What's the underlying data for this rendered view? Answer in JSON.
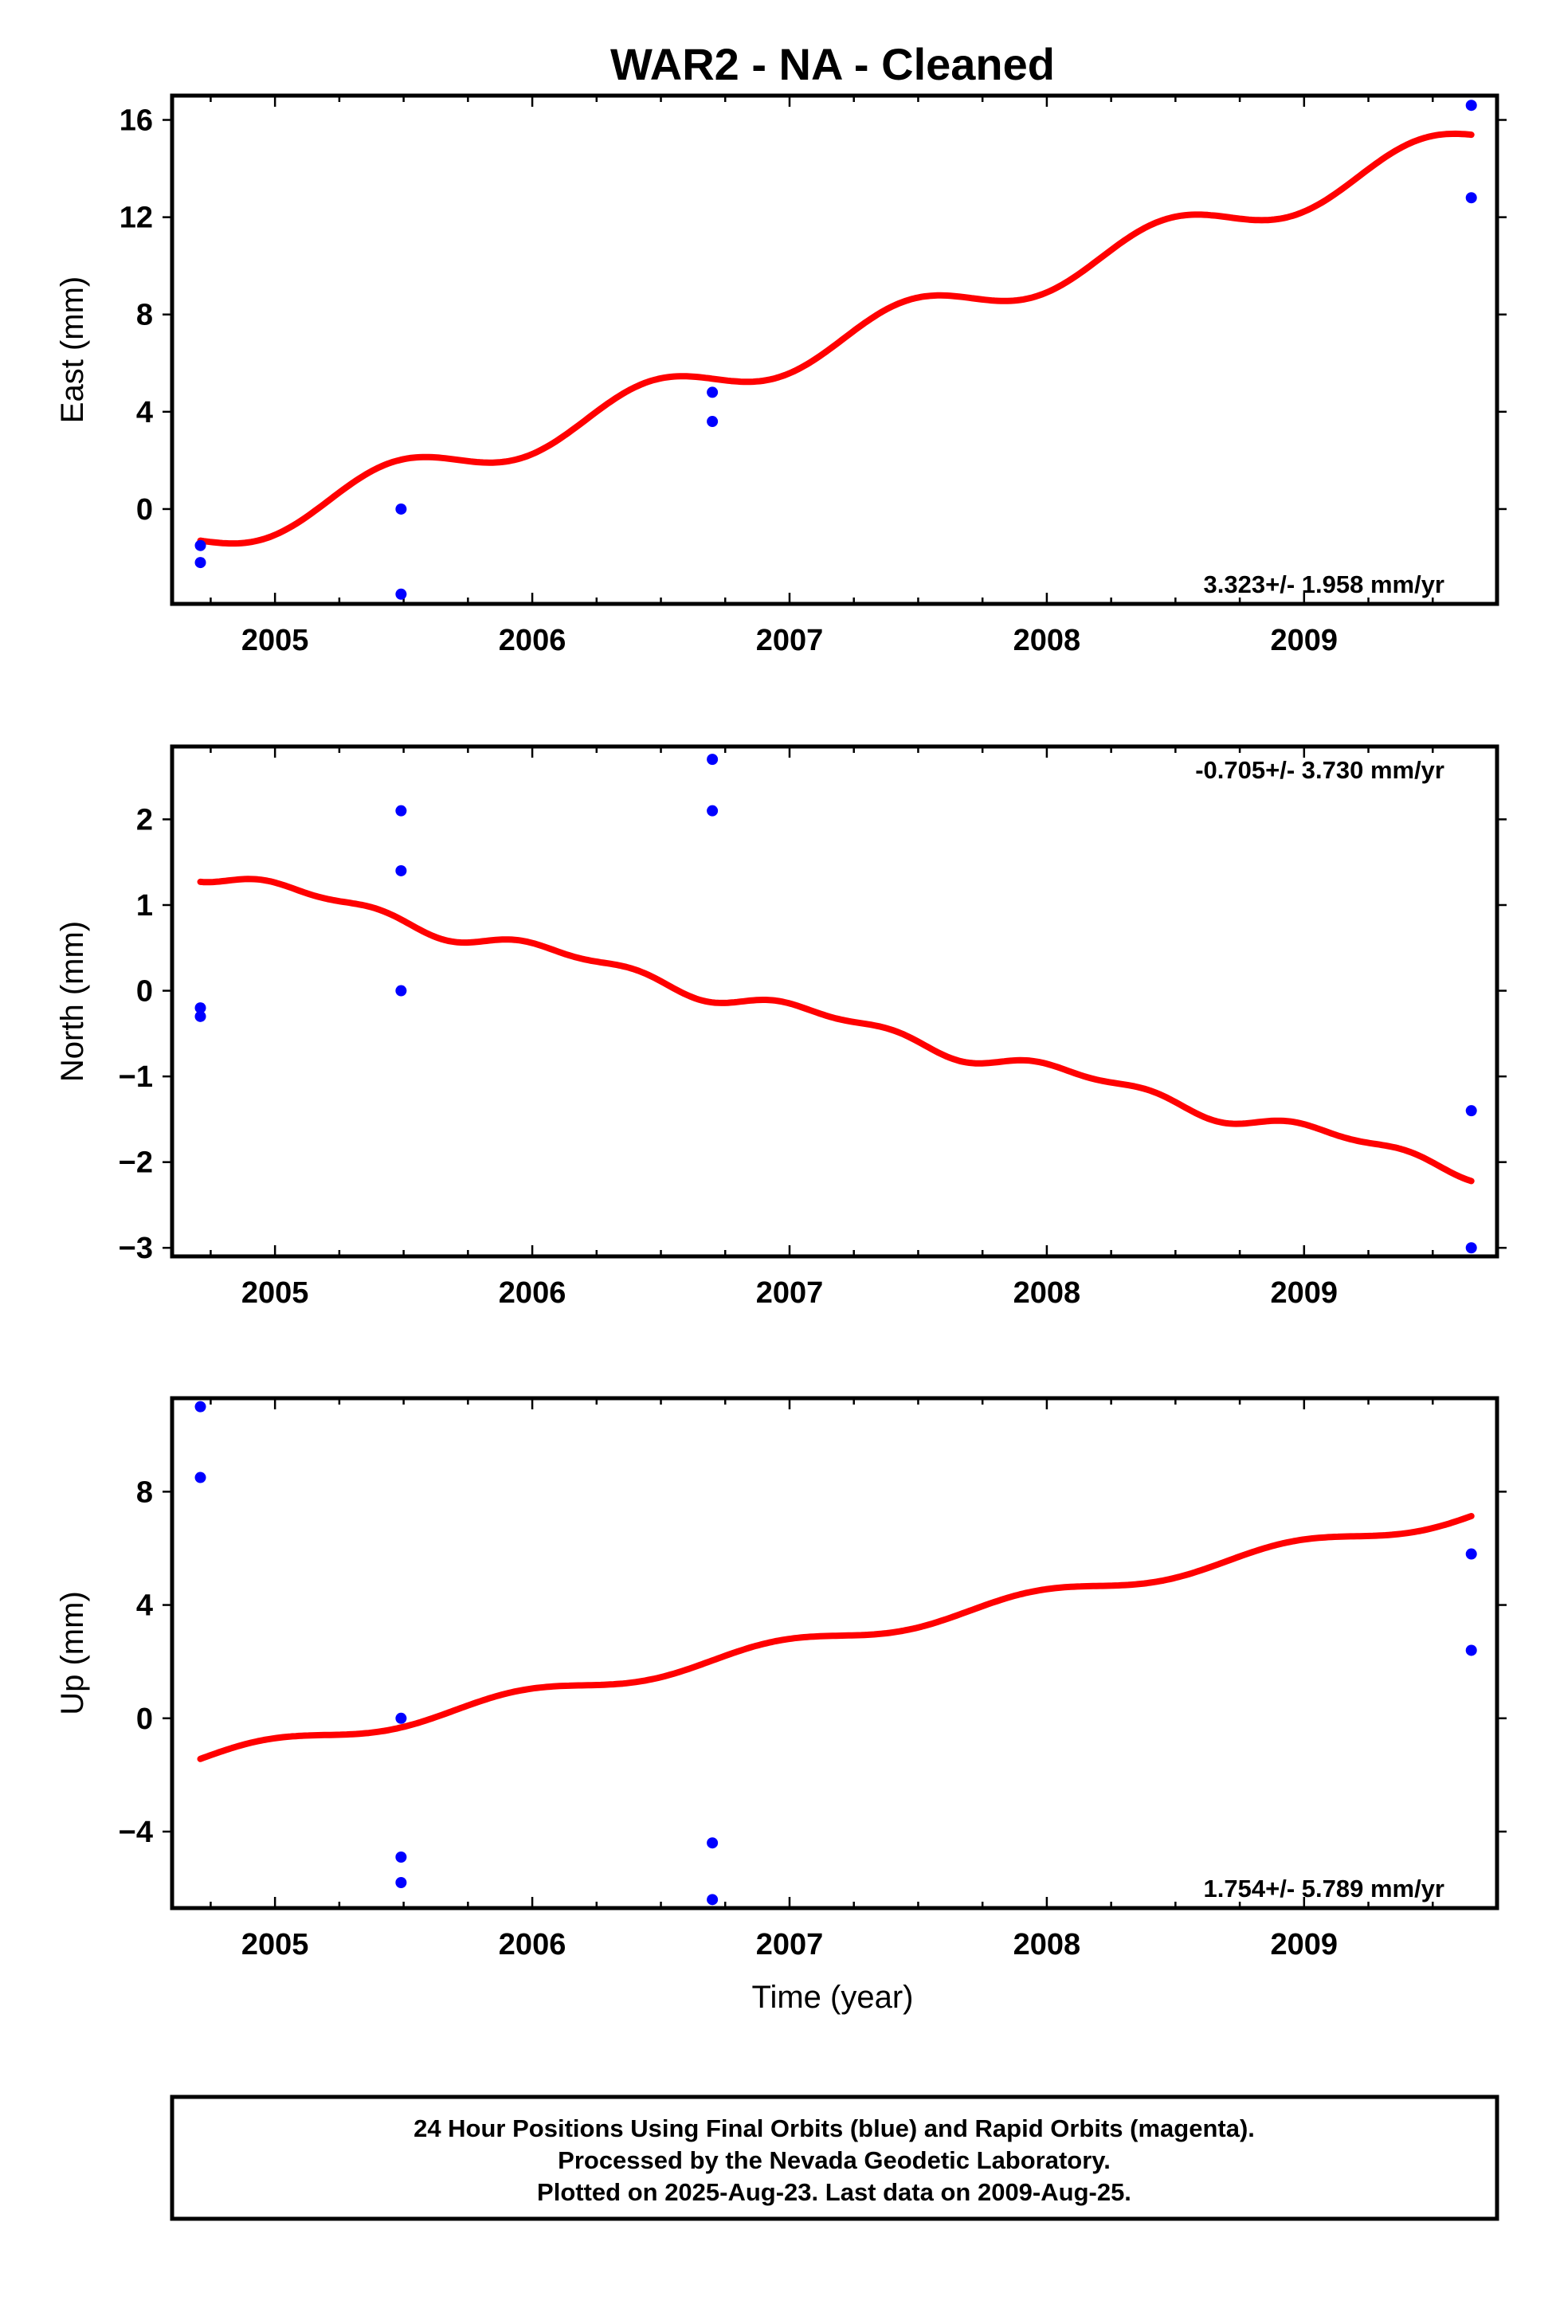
{
  "title": "WAR2  - NA - Cleaned",
  "xlabel": "Time (year)",
  "colors": {
    "points": "#0000ff",
    "fit": "#ff0000",
    "axes": "#000000"
  },
  "footer": {
    "line1": "24 Hour Positions Using Final Orbits (blue) and Rapid Orbits (magenta).",
    "line2": "Processed by the Nevada Geodetic Laboratory.",
    "line3": "Plotted on 2025-Aug-23. Last data on 2009-Aug-25."
  },
  "chart_data": [
    {
      "type": "scatter",
      "ylabel": "East (mm)",
      "rate_label": "3.323+/- 1.958 mm/yr",
      "rate_position": "bottom-right",
      "xlim": [
        2004.6,
        2009.75
      ],
      "ylim": [
        -3.9,
        17
      ],
      "x_ticks": [
        2005,
        2006,
        2007,
        2008,
        2009
      ],
      "y_ticks": [
        0,
        4,
        8,
        12,
        16
      ],
      "points": [
        {
          "x": 2004.71,
          "y": -1.5
        },
        {
          "x": 2004.71,
          "y": -2.2
        },
        {
          "x": 2005.49,
          "y": 0.0
        },
        {
          "x": 2005.49,
          "y": -3.5
        },
        {
          "x": 2006.7,
          "y": 4.8
        },
        {
          "x": 2006.7,
          "y": 3.6
        },
        {
          "x": 2009.65,
          "y": 16.6
        },
        {
          "x": 2009.65,
          "y": 12.8
        }
      ],
      "fit": {
        "rate": 3.323,
        "intercept": -1.3,
        "ref_year": 2004.71,
        "annual_amp": 0.75,
        "annual_phase_year": 2005.21,
        "semiannual_amp": 0,
        "semiannual_phase_year": 2005.0
      }
    },
    {
      "type": "scatter",
      "ylabel": "North (mm)",
      "rate_label": "-0.705+/- 3.730 mm/yr",
      "rate_position": "top-right",
      "xlim": [
        2004.6,
        2009.75
      ],
      "ylim": [
        -3.1,
        2.85
      ],
      "x_ticks": [
        2005,
        2006,
        2007,
        2008,
        2009
      ],
      "y_ticks": [
        -3,
        -2,
        -1,
        0,
        1,
        2
      ],
      "points": [
        {
          "x": 2004.71,
          "y": -0.2
        },
        {
          "x": 2004.71,
          "y": -0.3
        },
        {
          "x": 2005.49,
          "y": 2.1
        },
        {
          "x": 2005.49,
          "y": 1.4
        },
        {
          "x": 2005.49,
          "y": 0.0
        },
        {
          "x": 2006.7,
          "y": 2.7
        },
        {
          "x": 2006.7,
          "y": 2.1
        },
        {
          "x": 2009.65,
          "y": -1.4
        },
        {
          "x": 2009.65,
          "y": -3.0
        }
      ],
      "fit": {
        "rate": -0.705,
        "intercept": 1.39,
        "ref_year": 2004.71,
        "annual_amp": 0.08,
        "annual_phase_year": 2004.9,
        "semiannual_amp": 0.05,
        "semiannual_phase_year": 2004.8
      }
    },
    {
      "type": "scatter",
      "ylabel": "Up (mm)",
      "rate_label": "1.754+/- 5.789 mm/yr",
      "rate_position": "bottom-right",
      "xlim": [
        2004.6,
        2009.75
      ],
      "ylim": [
        -6.7,
        11.3
      ],
      "x_ticks": [
        2005,
        2006,
        2007,
        2008,
        2009
      ],
      "y_ticks": [
        -4,
        0,
        4,
        8
      ],
      "points": [
        {
          "x": 2004.71,
          "y": 11.0
        },
        {
          "x": 2004.71,
          "y": 8.5
        },
        {
          "x": 2005.49,
          "y": 0.0
        },
        {
          "x": 2005.49,
          "y": -4.9
        },
        {
          "x": 2005.49,
          "y": -5.8
        },
        {
          "x": 2006.7,
          "y": -4.4
        },
        {
          "x": 2006.7,
          "y": -6.4
        },
        {
          "x": 2009.65,
          "y": 5.8
        },
        {
          "x": 2009.65,
          "y": 2.4
        }
      ],
      "fit": {
        "rate": 1.754,
        "intercept": -1.45,
        "ref_year": 2004.71,
        "annual_amp": 0.25,
        "annual_phase_year": 2005.7,
        "semiannual_amp": 0,
        "semiannual_phase_year": 2005.0
      }
    }
  ]
}
